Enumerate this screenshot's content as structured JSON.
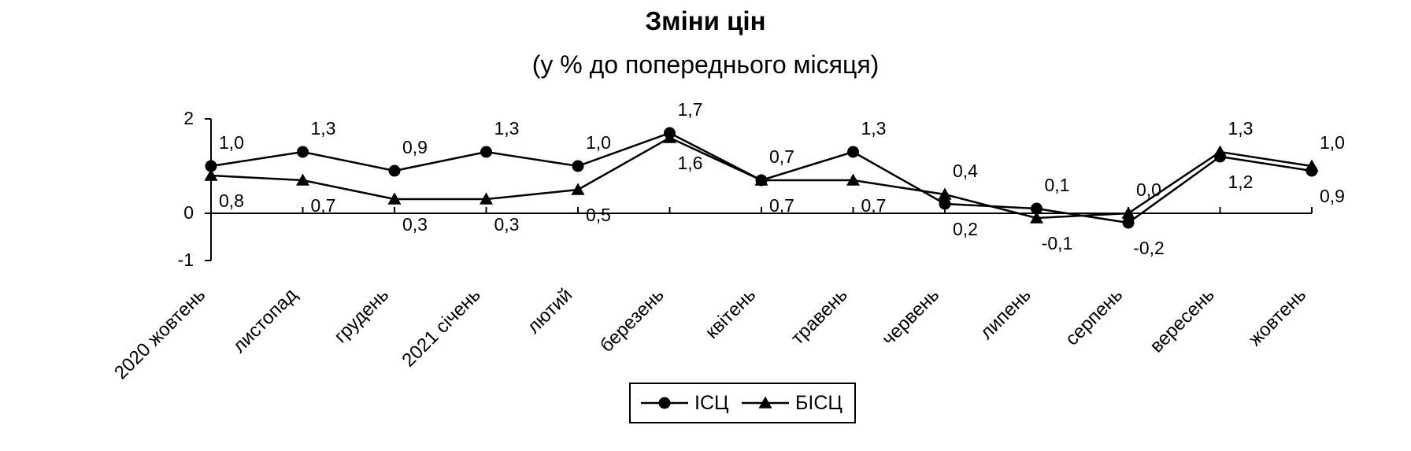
{
  "chart_data": {
    "type": "line",
    "title": "Зміни цін",
    "subtitle": "(у % до попереднього місяця)",
    "categories": [
      "2020 жовтень",
      "листопад",
      "грудень",
      "2021 січень",
      "лютий",
      "березень",
      "квітень",
      "травень",
      "червень",
      "липень",
      "серпень",
      "вересень",
      "жовтень"
    ],
    "series": [
      {
        "name": "ІСЦ",
        "marker": "circle",
        "values": [
          1.0,
          1.3,
          0.9,
          1.3,
          1.0,
          1.7,
          0.7,
          1.3,
          0.2,
          0.1,
          -0.2,
          1.2,
          0.9
        ],
        "labels": [
          "1,0",
          "1,3",
          "0,9",
          "1,3",
          "1,0",
          "1,7",
          "0,7",
          "1,3",
          "0,2",
          "0,1",
          "-0,2",
          "1,2",
          "0,9"
        ]
      },
      {
        "name": "БІСЦ",
        "marker": "triangle",
        "values": [
          0.8,
          0.7,
          0.3,
          0.3,
          0.5,
          1.6,
          0.7,
          0.7,
          0.4,
          -0.1,
          0.0,
          1.3,
          1.0
        ],
        "labels": [
          "0,8",
          "0,7",
          "0,3",
          "0,3",
          "0,5",
          "1,6",
          "0,7",
          "0,7",
          "0,4",
          "-0,1",
          "0,0",
          "1,3",
          "1,0"
        ]
      }
    ],
    "y_ticks": [
      "2",
      "0",
      "-1"
    ],
    "ylim": [
      -1,
      2
    ],
    "grid": false,
    "legend": "bottom-center",
    "colors": {
      "line": "#000000",
      "background": "#ffffff"
    }
  }
}
